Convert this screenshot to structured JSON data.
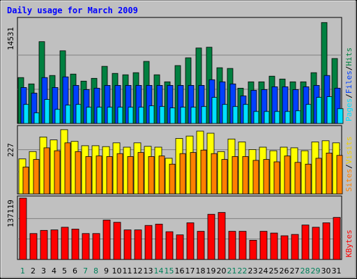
{
  "chart_data": {
    "type": "bar",
    "title": "Daily usage for March 2009",
    "categories": [
      "1",
      "2",
      "3",
      "4",
      "5",
      "6",
      "7",
      "8",
      "9",
      "10",
      "11",
      "12",
      "13",
      "14",
      "15",
      "16",
      "17",
      "18",
      "19",
      "20",
      "21",
      "22",
      "23",
      "24",
      "25",
      "26",
      "27",
      "28",
      "29",
      "30",
      "31"
    ],
    "weekend_days": [
      "1",
      "7",
      "8",
      "14",
      "15",
      "21",
      "22",
      "28",
      "29"
    ],
    "panels": [
      {
        "id": "hits-files-pages",
        "max_label": "14531",
        "ymax": 14531,
        "axis_labels": [
          {
            "text": "Hits",
            "color": "#008040"
          },
          {
            "text": "Files",
            "color": "#0040FF"
          },
          {
            "text": "Pages",
            "color": "#00E0FF"
          }
        ],
        "series": [
          {
            "name": "Hits",
            "color": "#008040",
            "values": [
              6500,
              5600,
              11600,
              6800,
              10300,
              7000,
              6000,
              6400,
              8100,
              7100,
              6900,
              7200,
              8800,
              6900,
              5900,
              8200,
              9300,
              10700,
              10800,
              7900,
              7800,
              5000,
              5900,
              5900,
              6700,
              6300,
              5900,
              5900,
              7200,
              14300,
              9200
            ]
          },
          {
            "name": "Files",
            "color": "#0040FF",
            "values": [
              5100,
              4300,
              6500,
              5100,
              6600,
              5400,
              4800,
              5000,
              5400,
              5400,
              5400,
              5400,
              5400,
              5400,
              5400,
              5400,
              5400,
              5400,
              6200,
              5900,
              5600,
              3900,
              4700,
              4800,
              5200,
              5200,
              4800,
              5200,
              5400,
              6800,
              5000
            ]
          },
          {
            "name": "Pages",
            "color": "#00E0FF",
            "values": [
              2700,
              1500,
              3400,
              2000,
              2600,
              2700,
              2300,
              2300,
              2300,
              2300,
              2300,
              2300,
              2500,
              2400,
              2200,
              2300,
              2300,
              2400,
              3700,
              2700,
              2400,
              2700,
              1700,
              1700,
              1700,
              1700,
              1800,
              2700,
              3700,
              3800,
              2100
            ]
          }
        ]
      },
      {
        "id": "visits-sites",
        "max_label": "227",
        "ymax": 227,
        "axis_labels": [
          {
            "text": "Visits",
            "color": "#F0D000"
          },
          {
            "text": "Sites",
            "color": "#FF8000"
          }
        ],
        "series": [
          {
            "name": "Visits",
            "color": "#FFFF00",
            "values": [
              120,
              145,
              195,
              185,
              220,
              180,
              165,
              165,
              162,
              175,
              160,
              175,
              163,
              160,
              122,
              190,
              198,
              215,
              208,
              145,
              188,
              178,
              152,
              160,
              148,
              160,
              158,
              148,
              178,
              182,
              175
            ]
          },
          {
            "name": "Sites",
            "color": "#FF8000",
            "values": [
              92,
              118,
              158,
              148,
              175,
              145,
              128,
              130,
              128,
              138,
              128,
              142,
              128,
              130,
              102,
              138,
              142,
              150,
              138,
              118,
              128,
              128,
              115,
              118,
              110,
              130,
              108,
              102,
              122,
              140,
              132
            ]
          }
        ]
      },
      {
        "id": "kbytes",
        "max_label": "137119",
        "ymax": 137119,
        "axis_labels": [
          {
            "text": "KBytes",
            "color": "#FF0000"
          }
        ],
        "series": [
          {
            "name": "KBytes",
            "color": "#FF0000",
            "values": [
              137119,
              58000,
              65000,
              66000,
              72000,
              68000,
              58000,
              58000,
              88000,
              83000,
              66000,
              66000,
              76000,
              79000,
              62000,
              55000,
              82000,
              63000,
              101000,
              105000,
              63000,
              63000,
              43000,
              63000,
              59000,
              53000,
              56000,
              77000,
              72000,
              82000,
              94000
            ]
          }
        ]
      }
    ]
  }
}
